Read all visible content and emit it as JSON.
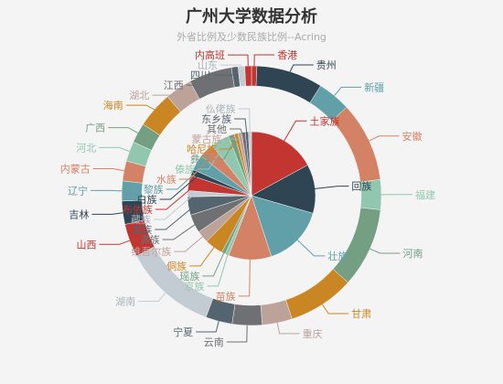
{
  "chart_data": {
    "type": "pie",
    "title": "广州大学数据分析",
    "subtitle": "外省比例及少数民族比例--Acring",
    "inner": {
      "name": "少数民族比例",
      "slices": [
        {
          "label": "土家族",
          "value": 11
        },
        {
          "label": "回族",
          "value": 8
        },
        {
          "label": "壮族",
          "value": 10
        },
        {
          "label": "苗族",
          "value": 7
        },
        {
          "label": "京族",
          "value": 0.6
        },
        {
          "label": "瑶族",
          "value": 0.6
        },
        {
          "label": "侗族",
          "value": 3
        },
        {
          "label": "维吾尔族",
          "value": 2
        },
        {
          "label": "满族",
          "value": 3
        },
        {
          "label": "畲族",
          "value": 3
        },
        {
          "label": "藏族",
          "value": 1
        },
        {
          "label": "布依族",
          "value": 2.5
        },
        {
          "label": "白族",
          "value": 1
        },
        {
          "label": "黎族",
          "value": 2.5
        },
        {
          "label": "水族",
          "value": 2.5
        },
        {
          "label": "傣族",
          "value": 3
        },
        {
          "label": "彝族",
          "value": 1
        },
        {
          "label": "哈尼族",
          "value": 0.6
        },
        {
          "label": "蒙古族",
          "value": 0.6
        },
        {
          "label": "其他",
          "value": 0.6
        },
        {
          "label": "东乡族",
          "value": 0.5
        },
        {
          "label": "仫佬族",
          "value": 0.5
        }
      ]
    },
    "outer": {
      "name": "外省比例",
      "slices": [
        {
          "label": "香港",
          "value": 0.8
        },
        {
          "label": "贵州",
          "value": 10
        },
        {
          "label": "新疆",
          "value": 5
        },
        {
          "label": "安徽",
          "value": 12
        },
        {
          "label": "福建",
          "value": 4.5
        },
        {
          "label": "河南",
          "value": 12
        },
        {
          "label": "甘肃",
          "value": 10
        },
        {
          "label": "重庆",
          "value": 4.5
        },
        {
          "label": "云南",
          "value": 4.5
        },
        {
          "label": "宁夏",
          "value": 4
        },
        {
          "label": "湖南",
          "value": 14
        },
        {
          "label": "山西",
          "value": 5
        },
        {
          "label": "吉林",
          "value": 3.5
        },
        {
          "label": "辽宁",
          "value": 3
        },
        {
          "label": "内蒙古",
          "value": 3
        },
        {
          "label": "河北",
          "value": 3
        },
        {
          "label": "广西",
          "value": 3
        },
        {
          "label": "海南",
          "value": 5.5
        },
        {
          "label": "湖北",
          "value": 4
        },
        {
          "label": "江西",
          "value": 6.5
        },
        {
          "label": "四川",
          "value": 1
        },
        {
          "label": "山东",
          "value": 1
        },
        {
          "label": "内高班",
          "value": 1
        }
      ]
    }
  },
  "colors": {
    "background": "#f4f4f4",
    "palette": [
      "#c23531",
      "#2f4554",
      "#61a0a8",
      "#d48265",
      "#91c7ae",
      "#749f83",
      "#ca8622",
      "#bda29a",
      "#6e7074",
      "#546570",
      "#c4ccd3"
    ]
  }
}
